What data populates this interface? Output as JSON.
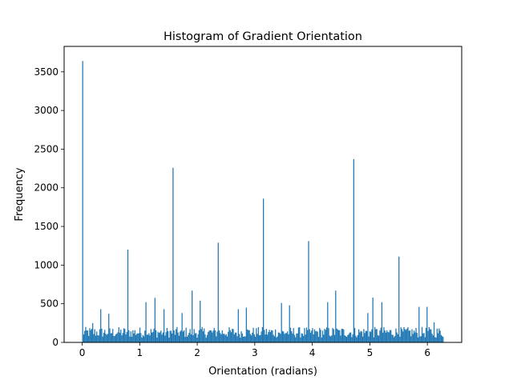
{
  "chart_data": {
    "type": "bar",
    "title": "Histogram of Gradient Orientation",
    "xlabel": "Orientation (radians)",
    "ylabel": "Frequency",
    "xlim": [
      -0.314,
      6.597
    ],
    "ylim": [
      0,
      3829
    ],
    "grid": false,
    "legend": "none",
    "bar_color": "#1f77b4",
    "x_ticks": [
      {
        "value": 0,
        "label": "0"
      },
      {
        "value": 1,
        "label": "1"
      },
      {
        "value": 2,
        "label": "2"
      },
      {
        "value": 3,
        "label": "3"
      },
      {
        "value": 4,
        "label": "4"
      },
      {
        "value": 5,
        "label": "5"
      },
      {
        "value": 6,
        "label": "6"
      }
    ],
    "y_ticks": [
      {
        "value": 0,
        "label": "0"
      },
      {
        "value": 500,
        "label": "500"
      },
      {
        "value": 1000,
        "label": "1000"
      },
      {
        "value": 1500,
        "label": "1500"
      },
      {
        "value": 2000,
        "label": "2000"
      },
      {
        "value": 2500,
        "label": "2500"
      },
      {
        "value": 3000,
        "label": "3000"
      },
      {
        "value": 3500,
        "label": "3500"
      }
    ],
    "bin_range": [
      0,
      6.283
    ],
    "bin_count": 360,
    "baseline_min": 60,
    "baseline_max": 200,
    "spikes": [
      {
        "x": 0.0,
        "value": 3640
      },
      {
        "x": 0.785,
        "value": 1200
      },
      {
        "x": 1.571,
        "value": 2260
      },
      {
        "x": 2.356,
        "value": 1290
      },
      {
        "x": 3.142,
        "value": 1860
      },
      {
        "x": 3.927,
        "value": 1310
      },
      {
        "x": 4.712,
        "value": 2370
      },
      {
        "x": 5.498,
        "value": 1110
      },
      {
        "x": 0.18,
        "value": 250
      },
      {
        "x": 0.32,
        "value": 430
      },
      {
        "x": 0.46,
        "value": 370
      },
      {
        "x": 1.1,
        "value": 520
      },
      {
        "x": 1.25,
        "value": 575
      },
      {
        "x": 1.42,
        "value": 430
      },
      {
        "x": 1.9,
        "value": 670
      },
      {
        "x": 2.05,
        "value": 540
      },
      {
        "x": 1.72,
        "value": 380
      },
      {
        "x": 2.7,
        "value": 430
      },
      {
        "x": 2.85,
        "value": 450
      },
      {
        "x": 3.45,
        "value": 510
      },
      {
        "x": 3.6,
        "value": 480
      },
      {
        "x": 4.25,
        "value": 520
      },
      {
        "x": 4.4,
        "value": 670
      },
      {
        "x": 5.05,
        "value": 580
      },
      {
        "x": 5.2,
        "value": 520
      },
      {
        "x": 4.95,
        "value": 380
      },
      {
        "x": 5.85,
        "value": 460
      },
      {
        "x": 5.98,
        "value": 460
      },
      {
        "x": 6.1,
        "value": 260
      }
    ]
  }
}
